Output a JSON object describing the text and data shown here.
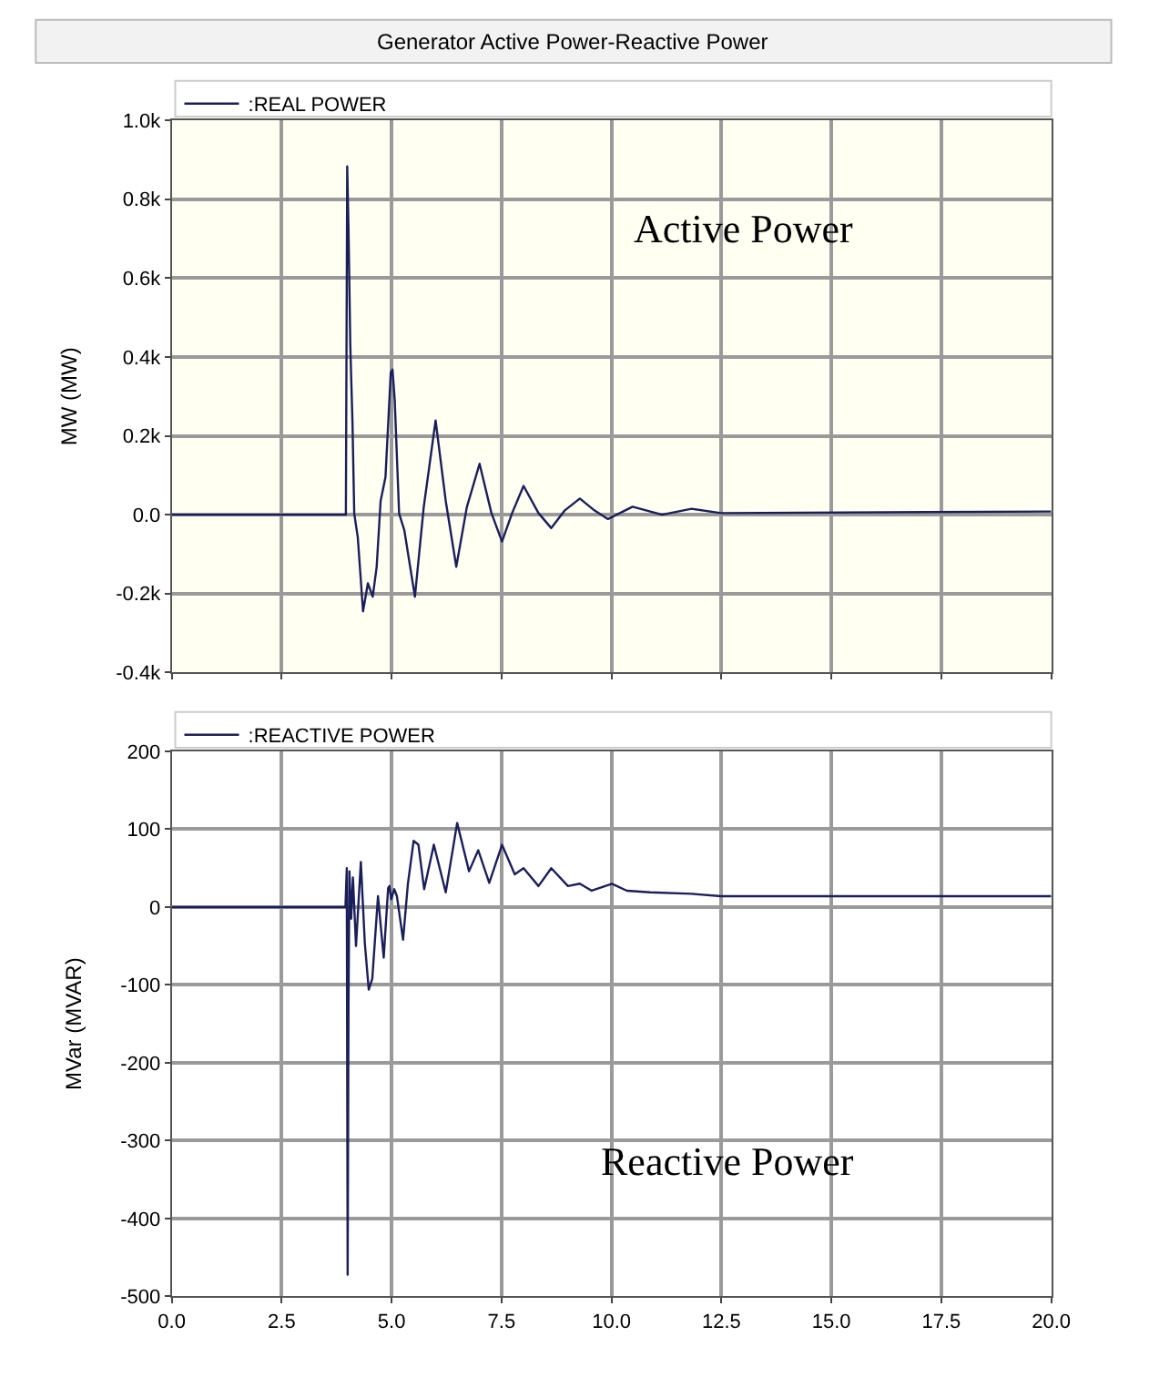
{
  "chart_data": [
    {
      "type": "line",
      "title": "Generator Active Power-Reactive Power",
      "ylabel": "MW (MW)",
      "annotations": [
        "Active Power"
      ],
      "series": [
        {
          "name": ":REAL POWER",
          "color": "#1a1f5a",
          "x": [
            0,
            3.96,
            3.99,
            4.02,
            4.06,
            4.11,
            4.15,
            4.23,
            4.35,
            4.46,
            4.57,
            4.66,
            4.75,
            4.86,
            4.98,
            5.02,
            5.07,
            5.17,
            5.29,
            5.53,
            5.73,
            6.0,
            6.23,
            6.47,
            6.71,
            7.0,
            7.27,
            7.51,
            7.74,
            8.0,
            8.34,
            8.63,
            8.94,
            9.28,
            9.61,
            9.92,
            10.48,
            11.15,
            11.82,
            12.49,
            20
          ],
          "values": [
            0,
            0,
            883,
            724,
            429,
            232,
            3,
            -57,
            -245,
            -174,
            -208,
            -132,
            35,
            95,
            360,
            368,
            292,
            3,
            -40,
            -208,
            19,
            239,
            35,
            -132,
            19,
            129,
            4,
            -68,
            4,
            73,
            4,
            -34,
            11,
            41,
            11,
            -11,
            20,
            0,
            15,
            4,
            8
          ]
        }
      ],
      "xlim": [
        0,
        20
      ],
      "xticks": [
        {
          "value": 0,
          "label": null
        },
        {
          "value": 2.5,
          "label": null
        },
        {
          "value": 5,
          "label": null
        },
        {
          "value": 7.5,
          "label": null
        },
        {
          "value": 10,
          "label": null
        },
        {
          "value": 12.5,
          "label": null
        },
        {
          "value": 15,
          "label": null
        },
        {
          "value": 17.5,
          "label": null
        },
        {
          "value": 20,
          "label": null
        }
      ],
      "ylim": [
        -400,
        1000
      ],
      "yticks": [
        {
          "value": -400,
          "label": "-0.4k"
        },
        {
          "value": -200,
          "label": "-0.2k"
        },
        {
          "value": 0,
          "label": "0.0"
        },
        {
          "value": 200,
          "label": "0.2k"
        },
        {
          "value": 400,
          "label": "0.4k"
        },
        {
          "value": 600,
          "label": "0.6k"
        },
        {
          "value": 800,
          "label": "0.8k"
        },
        {
          "value": 1000,
          "label": "1.0k"
        }
      ],
      "grid": true,
      "legend": "top left",
      "tick_labels": "y"
    },
    {
      "type": "line",
      "ylabel": "MVar (MVAR)",
      "annotations": [
        "Reactive Power"
      ],
      "series": [
        {
          "name": ":REACTIVE POWER",
          "color": "#1a1f5a",
          "x": [
            0,
            3.95,
            3.98,
            4.0,
            4.02,
            4.04,
            4.08,
            4.12,
            4.19,
            4.3,
            4.39,
            4.48,
            4.56,
            4.69,
            4.82,
            4.92,
            4.95,
            4.99,
            5.06,
            5.12,
            5.26,
            5.37,
            5.5,
            5.61,
            5.74,
            5.96,
            6.23,
            6.49,
            6.76,
            6.97,
            7.22,
            7.51,
            7.8,
            8.0,
            8.34,
            8.63,
            9.01,
            9.28,
            9.55,
            10.01,
            10.35,
            10.88,
            11.82,
            12.49,
            20
          ],
          "values": [
            0,
            0,
            50,
            -472,
            -123,
            46,
            -15,
            38,
            -50,
            58,
            -46,
            -106,
            -92,
            14,
            -65,
            24,
            27,
            10,
            23,
            14,
            -42,
            30,
            85,
            80,
            23,
            80,
            19,
            108,
            46,
            73,
            31,
            80,
            42,
            50,
            27,
            50,
            27,
            30,
            21,
            30,
            21,
            19,
            17,
            14,
            14
          ]
        }
      ],
      "xlim": [
        0,
        20
      ],
      "xticks": [
        {
          "value": 0,
          "label": "0.0"
        },
        {
          "value": 2.5,
          "label": "2.5"
        },
        {
          "value": 5,
          "label": "5.0"
        },
        {
          "value": 7.5,
          "label": "7.5"
        },
        {
          "value": 10,
          "label": "10.0"
        },
        {
          "value": 12.5,
          "label": "12.5"
        },
        {
          "value": 15,
          "label": "15.0"
        },
        {
          "value": 17.5,
          "label": "17.5"
        },
        {
          "value": 20,
          "label": "20.0"
        }
      ],
      "ylim": [
        -500,
        200
      ],
      "yticks": [
        -500,
        -400,
        -300,
        -200,
        -100,
        0,
        100,
        200
      ],
      "grid": true,
      "legend": "top left"
    }
  ]
}
